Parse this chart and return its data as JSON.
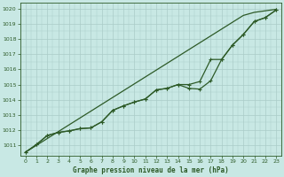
{
  "bg_color": "#c8e8e4",
  "grid_color": "#b0d4d0",
  "line_color": "#2d5a27",
  "title": "Graphe pression niveau de la mer (hPa)",
  "xlim": [
    -0.5,
    23.5
  ],
  "ylim": [
    1010.3,
    1020.4
  ],
  "yticks": [
    1011,
    1012,
    1013,
    1014,
    1015,
    1016,
    1017,
    1018,
    1019,
    1020
  ],
  "xticks": [
    0,
    1,
    2,
    3,
    4,
    5,
    6,
    7,
    8,
    9,
    10,
    11,
    12,
    13,
    14,
    15,
    16,
    17,
    18,
    19,
    20,
    21,
    22,
    23
  ],
  "line_straight": [
    1010.55,
    1011.0,
    1011.45,
    1011.9,
    1012.35,
    1012.8,
    1013.25,
    1013.7,
    1014.15,
    1014.6,
    1015.05,
    1015.5,
    1015.95,
    1016.4,
    1016.85,
    1017.3,
    1017.75,
    1018.2,
    1018.65,
    1019.1,
    1019.55,
    1019.75,
    1019.85,
    1019.95
  ],
  "line_main": [
    1010.55,
    1011.05,
    1011.65,
    1011.85,
    1011.95,
    1012.1,
    1012.15,
    1012.55,
    1013.3,
    1013.6,
    1013.85,
    1014.05,
    1014.65,
    1014.75,
    1015.0,
    1014.75,
    1014.7,
    1015.25,
    1016.65,
    1017.6,
    1018.3,
    1019.15,
    1019.4,
    1019.9
  ],
  "line_upper": [
    1010.55,
    1011.05,
    1011.65,
    1011.85,
    1011.95,
    1012.1,
    1012.15,
    1012.55,
    1013.3,
    1013.6,
    1013.85,
    1014.05,
    1014.65,
    1014.75,
    1015.0,
    1015.0,
    1015.2,
    1016.65,
    1016.65,
    1017.6,
    1018.3,
    1019.15,
    1019.4,
    1019.9
  ]
}
